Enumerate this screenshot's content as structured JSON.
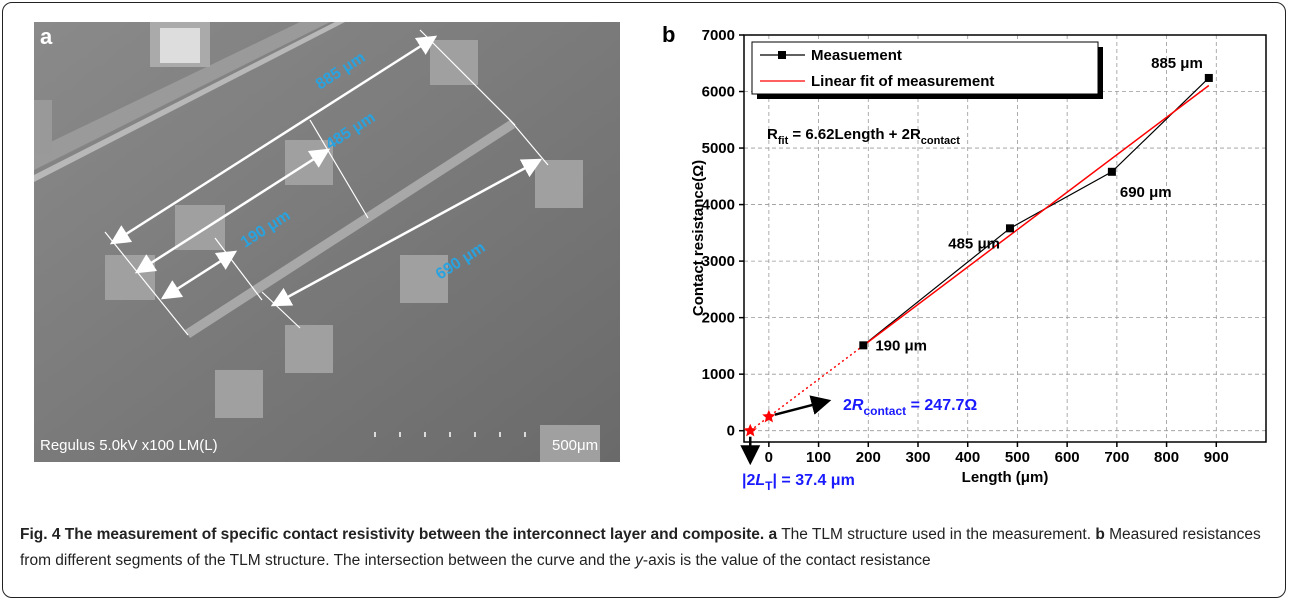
{
  "panel_a": {
    "label": "a",
    "annotations": [
      "885 μm",
      "485 μm",
      "190 μm",
      "690 μm"
    ],
    "footer": "Regulus 5.0kV x100 LM(L)",
    "scale_bar": "500μm"
  },
  "chart_data": {
    "type": "line",
    "panel_label": "b",
    "xlabel": "Length (μm)",
    "ylabel": "Contact resistance(Ω)",
    "xlim": [
      -50,
      1000
    ],
    "ylim": [
      -200,
      7000
    ],
    "xticks": [
      0,
      100,
      200,
      300,
      400,
      500,
      600,
      700,
      800,
      900
    ],
    "yticks": [
      0,
      1000,
      2000,
      3000,
      4000,
      5000,
      6000,
      7000
    ],
    "grid": true,
    "legend": "upper left",
    "series": [
      {
        "name": "Measuement",
        "color": "#000000",
        "x": [
          190,
          485,
          690,
          885
        ],
        "values": [
          1510,
          3580,
          4580,
          6240
        ],
        "point_labels": [
          "190 μm",
          "485 μm",
          "690 μm",
          "885 μm"
        ]
      },
      {
        "name": "Linear fit of measurement",
        "color": "#ff0000",
        "x": [
          -37.4,
          190,
          885
        ],
        "values": [
          0,
          1505.5,
          6106.4
        ]
      }
    ],
    "fit_equation": [
      "R",
      "fit",
      " = 6.62Length + 2R",
      "contact"
    ],
    "intercepts": [
      {
        "x": 0,
        "y": 247.7,
        "label": [
          "2",
          "R",
          "contact",
          " = 247.7Ω"
        ]
      },
      {
        "x": -37.4,
        "y": 0,
        "label": [
          "|2",
          "L",
          "T",
          "| = 37.4 μm"
        ]
      }
    ]
  },
  "caption": {
    "title": "Fig. 4 The measurement of specific contact resistivity between the interconnect layer and composite.",
    "a_label": "a",
    "a_text": "The TLM structure used in the measurement.",
    "b_label": "b",
    "b_text": "Measured resistances from different segments of the TLM structure. The intersection between the curve and the",
    "axis_word": "y",
    "b_tail": "-axis is the value of the contact resistance"
  }
}
